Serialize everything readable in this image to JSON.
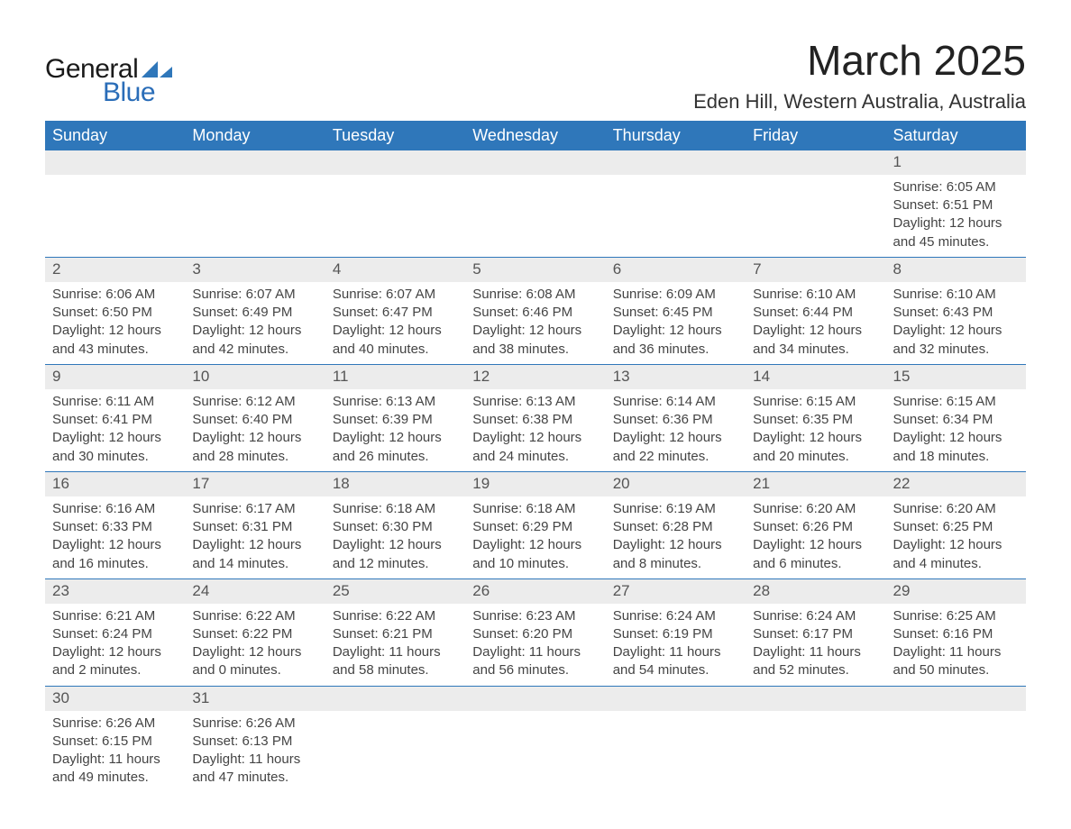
{
  "brand": {
    "word1": "General",
    "word2": "Blue",
    "tri_color": "#2f77ba",
    "word1_color": "#1a1a1a",
    "word2_color": "#2a6db8"
  },
  "title": "March 2025",
  "location": "Eden Hill, Western Australia, Australia",
  "header_bg": "#2f77ba",
  "header_fg": "#ffffff",
  "row_sep_color": "#2f77ba",
  "daynum_bg": "#ececec",
  "text_color": "#444444",
  "columns": [
    "Sunday",
    "Monday",
    "Tuesday",
    "Wednesday",
    "Thursday",
    "Friday",
    "Saturday"
  ],
  "weeks": [
    [
      null,
      null,
      null,
      null,
      null,
      null,
      {
        "n": "1",
        "sr": "Sunrise: 6:05 AM",
        "ss": "Sunset: 6:51 PM",
        "d1": "Daylight: 12 hours",
        "d2": "and 45 minutes."
      }
    ],
    [
      {
        "n": "2",
        "sr": "Sunrise: 6:06 AM",
        "ss": "Sunset: 6:50 PM",
        "d1": "Daylight: 12 hours",
        "d2": "and 43 minutes."
      },
      {
        "n": "3",
        "sr": "Sunrise: 6:07 AM",
        "ss": "Sunset: 6:49 PM",
        "d1": "Daylight: 12 hours",
        "d2": "and 42 minutes."
      },
      {
        "n": "4",
        "sr": "Sunrise: 6:07 AM",
        "ss": "Sunset: 6:47 PM",
        "d1": "Daylight: 12 hours",
        "d2": "and 40 minutes."
      },
      {
        "n": "5",
        "sr": "Sunrise: 6:08 AM",
        "ss": "Sunset: 6:46 PM",
        "d1": "Daylight: 12 hours",
        "d2": "and 38 minutes."
      },
      {
        "n": "6",
        "sr": "Sunrise: 6:09 AM",
        "ss": "Sunset: 6:45 PM",
        "d1": "Daylight: 12 hours",
        "d2": "and 36 minutes."
      },
      {
        "n": "7",
        "sr": "Sunrise: 6:10 AM",
        "ss": "Sunset: 6:44 PM",
        "d1": "Daylight: 12 hours",
        "d2": "and 34 minutes."
      },
      {
        "n": "8",
        "sr": "Sunrise: 6:10 AM",
        "ss": "Sunset: 6:43 PM",
        "d1": "Daylight: 12 hours",
        "d2": "and 32 minutes."
      }
    ],
    [
      {
        "n": "9",
        "sr": "Sunrise: 6:11 AM",
        "ss": "Sunset: 6:41 PM",
        "d1": "Daylight: 12 hours",
        "d2": "and 30 minutes."
      },
      {
        "n": "10",
        "sr": "Sunrise: 6:12 AM",
        "ss": "Sunset: 6:40 PM",
        "d1": "Daylight: 12 hours",
        "d2": "and 28 minutes."
      },
      {
        "n": "11",
        "sr": "Sunrise: 6:13 AM",
        "ss": "Sunset: 6:39 PM",
        "d1": "Daylight: 12 hours",
        "d2": "and 26 minutes."
      },
      {
        "n": "12",
        "sr": "Sunrise: 6:13 AM",
        "ss": "Sunset: 6:38 PM",
        "d1": "Daylight: 12 hours",
        "d2": "and 24 minutes."
      },
      {
        "n": "13",
        "sr": "Sunrise: 6:14 AM",
        "ss": "Sunset: 6:36 PM",
        "d1": "Daylight: 12 hours",
        "d2": "and 22 minutes."
      },
      {
        "n": "14",
        "sr": "Sunrise: 6:15 AM",
        "ss": "Sunset: 6:35 PM",
        "d1": "Daylight: 12 hours",
        "d2": "and 20 minutes."
      },
      {
        "n": "15",
        "sr": "Sunrise: 6:15 AM",
        "ss": "Sunset: 6:34 PM",
        "d1": "Daylight: 12 hours",
        "d2": "and 18 minutes."
      }
    ],
    [
      {
        "n": "16",
        "sr": "Sunrise: 6:16 AM",
        "ss": "Sunset: 6:33 PM",
        "d1": "Daylight: 12 hours",
        "d2": "and 16 minutes."
      },
      {
        "n": "17",
        "sr": "Sunrise: 6:17 AM",
        "ss": "Sunset: 6:31 PM",
        "d1": "Daylight: 12 hours",
        "d2": "and 14 minutes."
      },
      {
        "n": "18",
        "sr": "Sunrise: 6:18 AM",
        "ss": "Sunset: 6:30 PM",
        "d1": "Daylight: 12 hours",
        "d2": "and 12 minutes."
      },
      {
        "n": "19",
        "sr": "Sunrise: 6:18 AM",
        "ss": "Sunset: 6:29 PM",
        "d1": "Daylight: 12 hours",
        "d2": "and 10 minutes."
      },
      {
        "n": "20",
        "sr": "Sunrise: 6:19 AM",
        "ss": "Sunset: 6:28 PM",
        "d1": "Daylight: 12 hours",
        "d2": "and 8 minutes."
      },
      {
        "n": "21",
        "sr": "Sunrise: 6:20 AM",
        "ss": "Sunset: 6:26 PM",
        "d1": "Daylight: 12 hours",
        "d2": "and 6 minutes."
      },
      {
        "n": "22",
        "sr": "Sunrise: 6:20 AM",
        "ss": "Sunset: 6:25 PM",
        "d1": "Daylight: 12 hours",
        "d2": "and 4 minutes."
      }
    ],
    [
      {
        "n": "23",
        "sr": "Sunrise: 6:21 AM",
        "ss": "Sunset: 6:24 PM",
        "d1": "Daylight: 12 hours",
        "d2": "and 2 minutes."
      },
      {
        "n": "24",
        "sr": "Sunrise: 6:22 AM",
        "ss": "Sunset: 6:22 PM",
        "d1": "Daylight: 12 hours",
        "d2": "and 0 minutes."
      },
      {
        "n": "25",
        "sr": "Sunrise: 6:22 AM",
        "ss": "Sunset: 6:21 PM",
        "d1": "Daylight: 11 hours",
        "d2": "and 58 minutes."
      },
      {
        "n": "26",
        "sr": "Sunrise: 6:23 AM",
        "ss": "Sunset: 6:20 PM",
        "d1": "Daylight: 11 hours",
        "d2": "and 56 minutes."
      },
      {
        "n": "27",
        "sr": "Sunrise: 6:24 AM",
        "ss": "Sunset: 6:19 PM",
        "d1": "Daylight: 11 hours",
        "d2": "and 54 minutes."
      },
      {
        "n": "28",
        "sr": "Sunrise: 6:24 AM",
        "ss": "Sunset: 6:17 PM",
        "d1": "Daylight: 11 hours",
        "d2": "and 52 minutes."
      },
      {
        "n": "29",
        "sr": "Sunrise: 6:25 AM",
        "ss": "Sunset: 6:16 PM",
        "d1": "Daylight: 11 hours",
        "d2": "and 50 minutes."
      }
    ],
    [
      {
        "n": "30",
        "sr": "Sunrise: 6:26 AM",
        "ss": "Sunset: 6:15 PM",
        "d1": "Daylight: 11 hours",
        "d2": "and 49 minutes."
      },
      {
        "n": "31",
        "sr": "Sunrise: 6:26 AM",
        "ss": "Sunset: 6:13 PM",
        "d1": "Daylight: 11 hours",
        "d2": "and 47 minutes."
      },
      null,
      null,
      null,
      null,
      null
    ]
  ]
}
